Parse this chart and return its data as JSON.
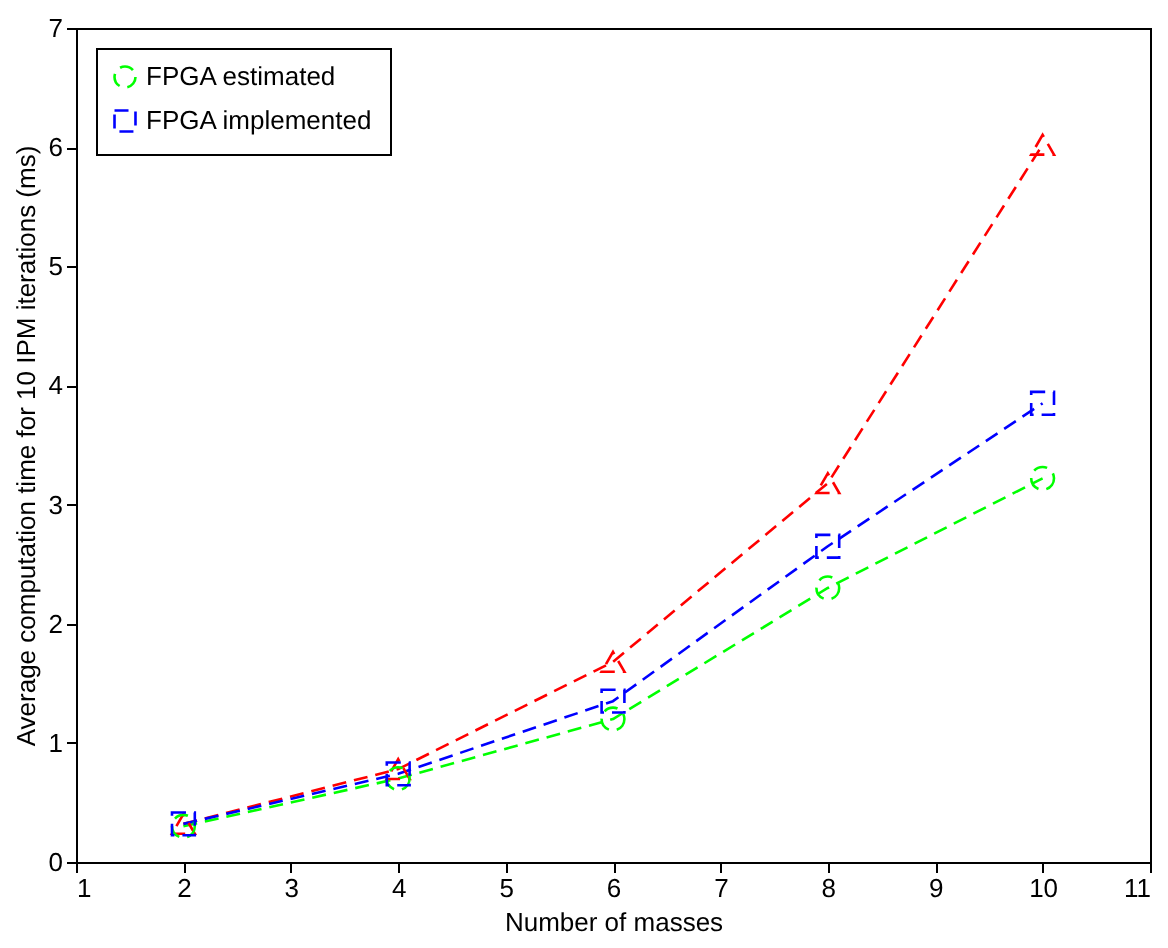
{
  "chart_data": {
    "type": "line",
    "xlabel": "Number of masses",
    "ylabel": "Average computation time for 10 IPM iterations (ms)",
    "x": [
      2,
      4,
      6,
      8,
      10
    ],
    "series": [
      {
        "color": "#ff0000",
        "marker": "triangle",
        "values": [
          0.32,
          0.78,
          1.68,
          3.18,
          6.02
        ]
      },
      {
        "name": "FPGA estimated",
        "color": "#00ff00",
        "marker": "circle",
        "values": [
          0.3,
          0.7,
          1.2,
          2.3,
          3.22
        ]
      },
      {
        "name": "FPGA implemented",
        "color": "#0000ff",
        "marker": "square",
        "values": [
          0.32,
          0.74,
          1.35,
          2.65,
          3.85
        ]
      }
    ],
    "xlim": [
      1,
      11
    ],
    "xticks": [
      1,
      2,
      3,
      4,
      5,
      6,
      7,
      8,
      9,
      10,
      11
    ],
    "ylim": [
      0,
      7
    ],
    "yticks": [
      0,
      1,
      2,
      3,
      4,
      5,
      6,
      7
    ],
    "line_style": "dashed",
    "legend": "top left",
    "grid": false
  }
}
